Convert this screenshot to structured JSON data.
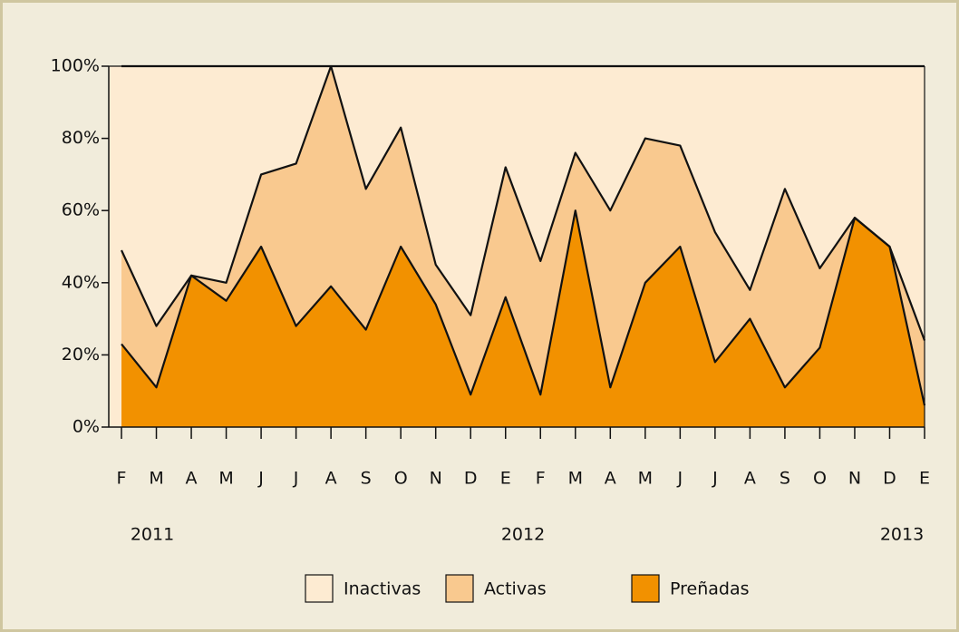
{
  "chart_data": {
    "type": "stacked_area",
    "categories": [
      "F",
      "M",
      "A",
      "M",
      "J",
      "J",
      "A",
      "S",
      "O",
      "N",
      "D",
      "E",
      "F",
      "M",
      "A",
      "M",
      "J",
      "J",
      "A",
      "S",
      "O",
      "N",
      "D",
      "E"
    ],
    "years": [
      "2011",
      "2012",
      "2013"
    ],
    "series": [
      {
        "name": "Preñadas",
        "color": "#f29100",
        "values": [
          23,
          11,
          42,
          35,
          50,
          28,
          39,
          27,
          50,
          34,
          9,
          36,
          9,
          60,
          11,
          40,
          50,
          18,
          30,
          11,
          22,
          58,
          50,
          6
        ]
      },
      {
        "name": "Activas",
        "color": "#f9c98f",
        "values": [
          26,
          17,
          0,
          5,
          20,
          45,
          61,
          39,
          33,
          11,
          22,
          36,
          37,
          16,
          49,
          40,
          28,
          36,
          8,
          55,
          22,
          0,
          0,
          18
        ]
      },
      {
        "name": "Inactivas",
        "color": "#fdebd2",
        "values": [
          51,
          72,
          58,
          60,
          30,
          27,
          0,
          34,
          17,
          55,
          69,
          28,
          54,
          24,
          40,
          20,
          22,
          46,
          62,
          34,
          56,
          42,
          50,
          76
        ]
      }
    ],
    "legend_order": [
      2,
      1,
      0
    ],
    "ylim": [
      0,
      100
    ],
    "yticks": [
      {
        "value": 0,
        "label": "0%"
      },
      {
        "value": 20,
        "label": "20%"
      },
      {
        "value": 40,
        "label": "40%"
      },
      {
        "value": 60,
        "label": "60%"
      },
      {
        "value": 80,
        "label": "80%"
      },
      {
        "value": 100,
        "label": "100%"
      }
    ]
  }
}
